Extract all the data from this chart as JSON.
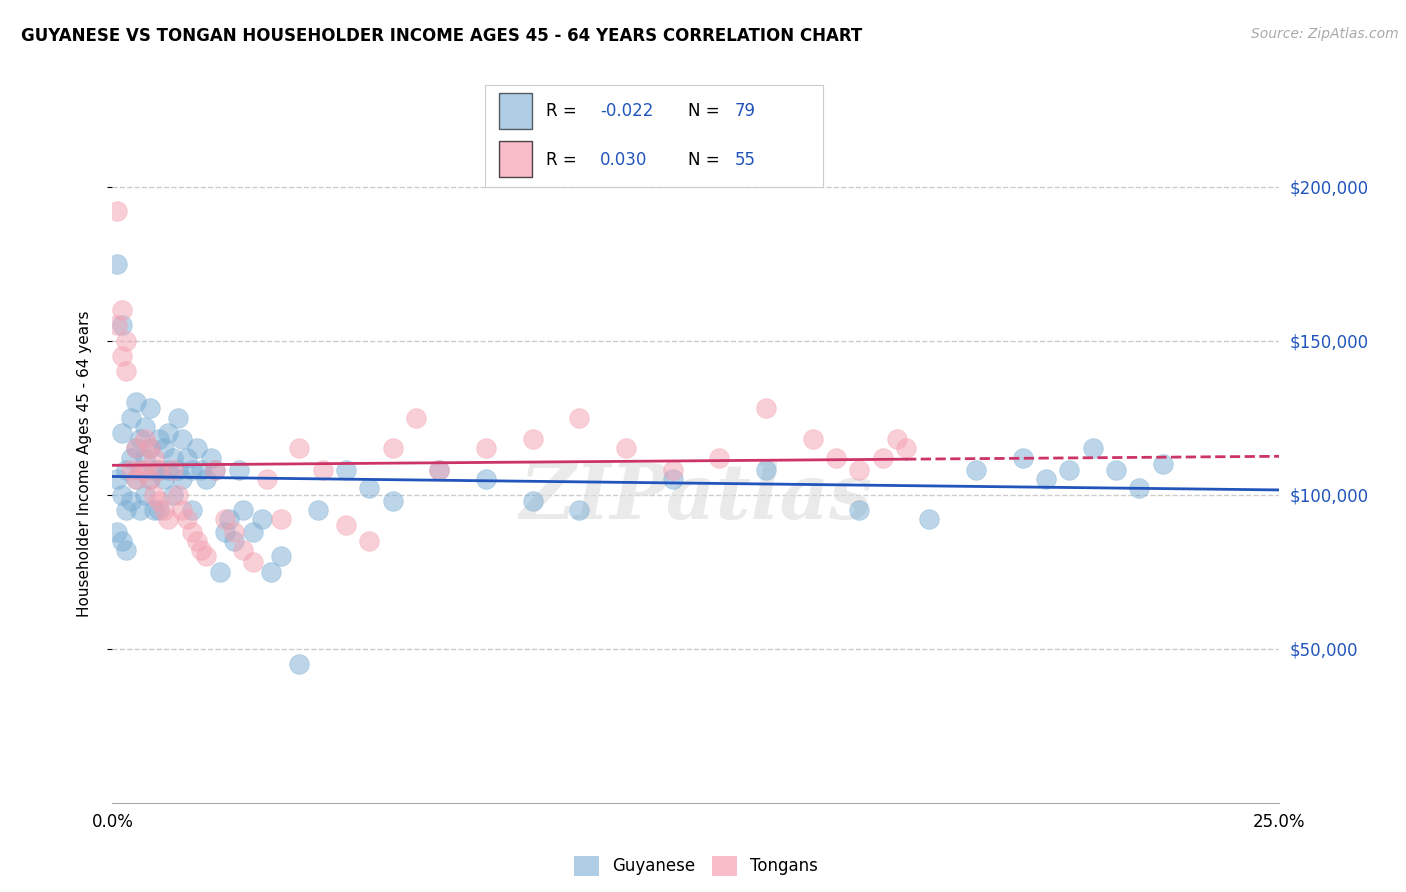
{
  "title": "GUYANESE VS TONGAN HOUSEHOLDER INCOME AGES 45 - 64 YEARS CORRELATION CHART",
  "source": "Source: ZipAtlas.com",
  "ylabel": "Householder Income Ages 45 - 64 years",
  "xlim": [
    0.0,
    0.25
  ],
  "ylim": [
    0,
    220000
  ],
  "yticks": [
    50000,
    100000,
    150000,
    200000
  ],
  "ytick_labels": [
    "$50,000",
    "$100,000",
    "$150,000",
    "$200,000"
  ],
  "background_color": "#ffffff",
  "watermark": "ZIPatlas",
  "legend_r_guyanese": "-0.022",
  "legend_n_guyanese": "79",
  "legend_r_tongan": "0.030",
  "legend_n_tongan": "55",
  "guyanese_color": "#7aadd4",
  "tongan_color": "#f4a0b0",
  "trend_guyanese_color": "#2255bb",
  "trend_tongan_color": "#cc3366",
  "guyanese_x": [
    0.001,
    0.001,
    0.001,
    0.002,
    0.002,
    0.002,
    0.002,
    0.003,
    0.003,
    0.003,
    0.004,
    0.004,
    0.004,
    0.005,
    0.005,
    0.005,
    0.006,
    0.006,
    0.006,
    0.007,
    0.007,
    0.007,
    0.008,
    0.008,
    0.008,
    0.009,
    0.009,
    0.01,
    0.01,
    0.01,
    0.011,
    0.011,
    0.012,
    0.012,
    0.013,
    0.013,
    0.014,
    0.014,
    0.015,
    0.015,
    0.016,
    0.017,
    0.017,
    0.018,
    0.019,
    0.02,
    0.021,
    0.022,
    0.023,
    0.024,
    0.025,
    0.026,
    0.027,
    0.028,
    0.03,
    0.032,
    0.034,
    0.036,
    0.04,
    0.044,
    0.05,
    0.055,
    0.06,
    0.07,
    0.08,
    0.09,
    0.1,
    0.12,
    0.14,
    0.16,
    0.175,
    0.185,
    0.195,
    0.2,
    0.205,
    0.21,
    0.215,
    0.22,
    0.225
  ],
  "guyanese_y": [
    175000,
    105000,
    88000,
    155000,
    120000,
    100000,
    85000,
    108000,
    95000,
    82000,
    125000,
    112000,
    98000,
    130000,
    115000,
    105000,
    118000,
    108000,
    95000,
    122000,
    112000,
    100000,
    128000,
    115000,
    105000,
    108000,
    95000,
    118000,
    108000,
    95000,
    115000,
    105000,
    120000,
    108000,
    112000,
    100000,
    125000,
    108000,
    118000,
    105000,
    112000,
    108000,
    95000,
    115000,
    108000,
    105000,
    112000,
    108000,
    75000,
    88000,
    92000,
    85000,
    108000,
    95000,
    88000,
    92000,
    75000,
    80000,
    45000,
    95000,
    108000,
    102000,
    98000,
    108000,
    105000,
    98000,
    95000,
    105000,
    108000,
    95000,
    92000,
    108000,
    112000,
    105000,
    108000,
    115000,
    108000,
    102000,
    110000
  ],
  "tongan_x": [
    0.001,
    0.001,
    0.002,
    0.002,
    0.003,
    0.003,
    0.004,
    0.005,
    0.005,
    0.006,
    0.007,
    0.007,
    0.008,
    0.008,
    0.009,
    0.009,
    0.01,
    0.01,
    0.011,
    0.012,
    0.013,
    0.014,
    0.015,
    0.016,
    0.017,
    0.018,
    0.019,
    0.02,
    0.022,
    0.024,
    0.026,
    0.028,
    0.03,
    0.033,
    0.036,
    0.04,
    0.045,
    0.05,
    0.055,
    0.06,
    0.065,
    0.07,
    0.08,
    0.09,
    0.1,
    0.11,
    0.12,
    0.13,
    0.14,
    0.15,
    0.155,
    0.16,
    0.165,
    0.168,
    0.17
  ],
  "tongan_y": [
    192000,
    155000,
    160000,
    145000,
    150000,
    140000,
    108000,
    115000,
    105000,
    108000,
    118000,
    108000,
    115000,
    105000,
    112000,
    100000,
    108000,
    98000,
    95000,
    92000,
    108000,
    100000,
    95000,
    92000,
    88000,
    85000,
    82000,
    80000,
    108000,
    92000,
    88000,
    82000,
    78000,
    105000,
    92000,
    115000,
    108000,
    90000,
    85000,
    115000,
    125000,
    108000,
    115000,
    118000,
    125000,
    115000,
    108000,
    112000,
    128000,
    118000,
    112000,
    108000,
    112000,
    118000,
    115000
  ]
}
